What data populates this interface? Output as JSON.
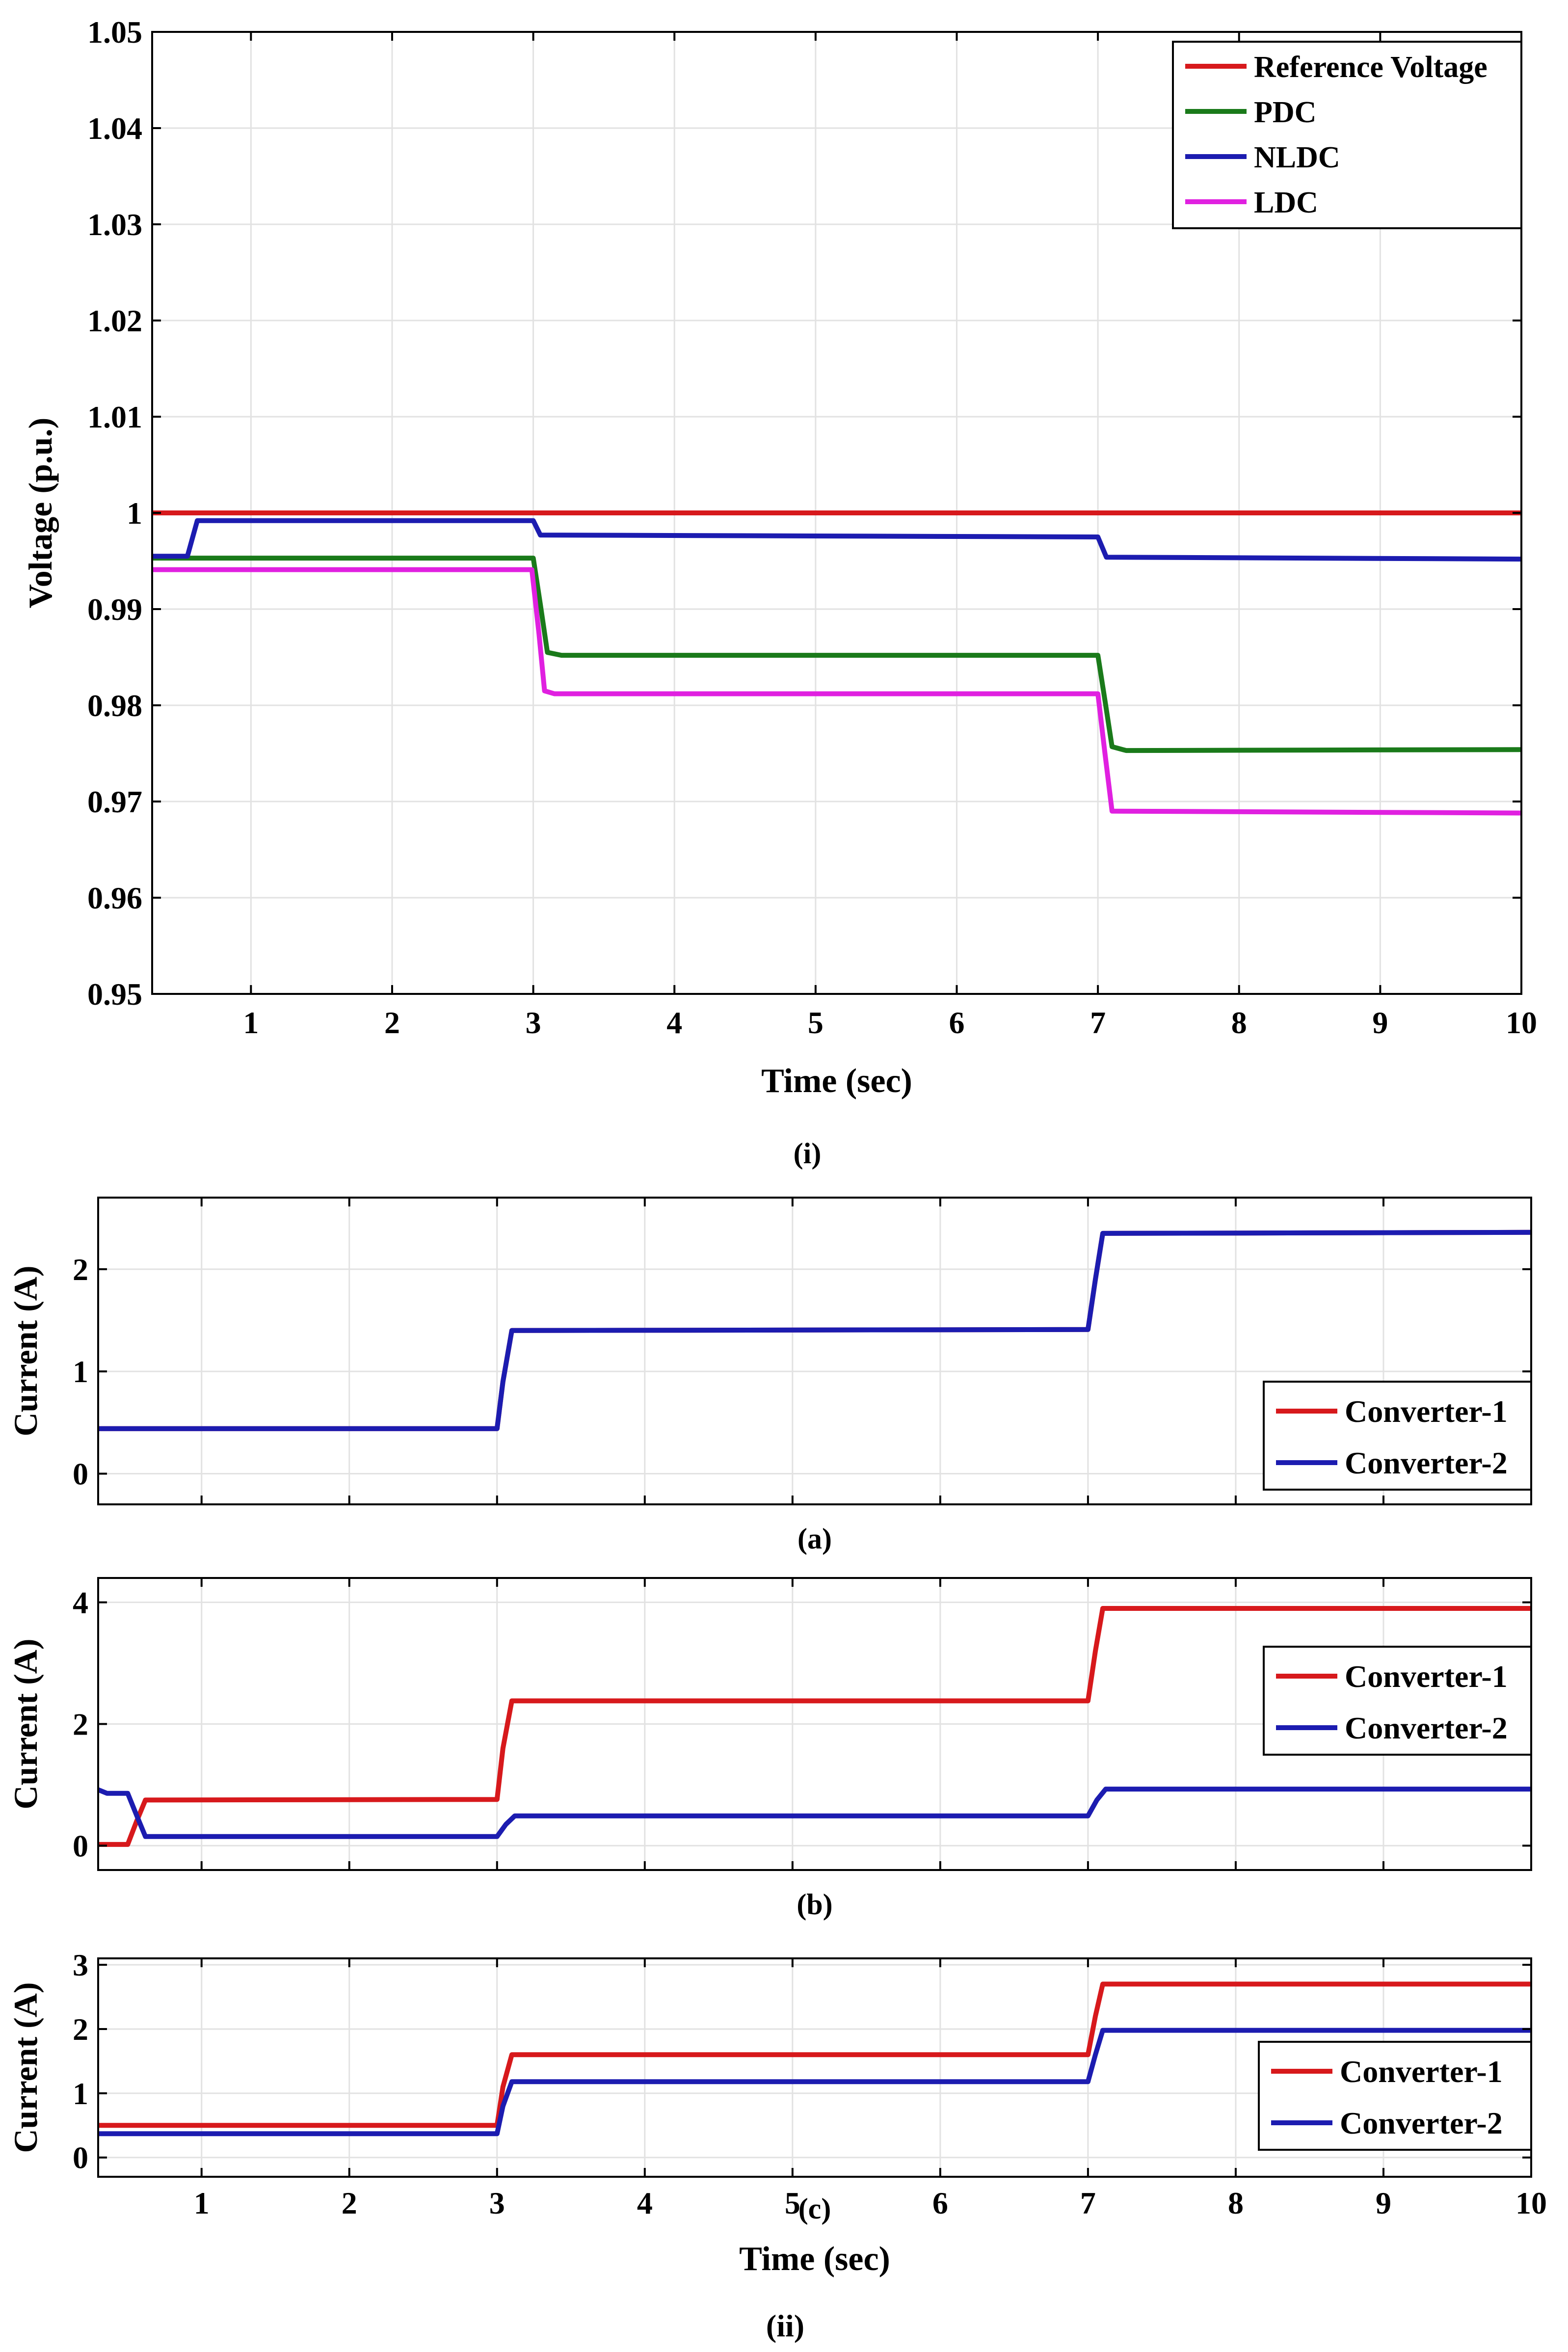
{
  "chart_data": [
    {
      "id": "voltage",
      "type": "line",
      "title": "",
      "caption": "(i)",
      "xlabel": "Time (sec)",
      "ylabel": "Voltage (p.u.)",
      "xlim": [
        0.3,
        10
      ],
      "ylim": [
        0.95,
        1.05
      ],
      "xticks": [
        1,
        2,
        3,
        4,
        5,
        6,
        7,
        8,
        9,
        10
      ],
      "yticks": [
        0.95,
        0.96,
        0.97,
        0.98,
        0.99,
        1,
        1.01,
        1.02,
        1.03,
        1.04,
        1.05
      ],
      "ytick_labels": [
        "0.95",
        "0.96",
        "0.97",
        "0.98",
        "0.99",
        "1",
        "1.01",
        "1.02",
        "1.03",
        "1.04",
        "1.05"
      ],
      "grid": true,
      "legend_position": "top-right",
      "series": [
        {
          "name": "Reference Voltage",
          "color": "#d7191c",
          "points": [
            [
              0.3,
              1.0
            ],
            [
              10,
              1.0
            ]
          ]
        },
        {
          "name": "PDC",
          "color": "#1a7a1a",
          "points": [
            [
              0.3,
              0.9953
            ],
            [
              3.0,
              0.9953
            ],
            [
              3.05,
              0.9905
            ],
            [
              3.1,
              0.9855
            ],
            [
              3.2,
              0.9852
            ],
            [
              7.0,
              0.9852
            ],
            [
              7.05,
              0.9805
            ],
            [
              7.1,
              0.9757
            ],
            [
              7.2,
              0.9753
            ],
            [
              10,
              0.9754
            ]
          ]
        },
        {
          "name": "NLDC",
          "color": "#1c1cb0",
          "points": [
            [
              0.3,
              0.9955
            ],
            [
              0.55,
              0.9955
            ],
            [
              0.62,
              0.9992
            ],
            [
              3.0,
              0.9992
            ],
            [
              3.05,
              0.9977
            ],
            [
              7.0,
              0.9975
            ],
            [
              7.06,
              0.9954
            ],
            [
              10,
              0.9952
            ]
          ]
        },
        {
          "name": "LDC",
          "color": "#e020e0",
          "points": [
            [
              0.3,
              0.9941
            ],
            [
              2.99,
              0.9941
            ],
            [
              3.04,
              0.9875
            ],
            [
              3.08,
              0.9815
            ],
            [
              3.15,
              0.9812
            ],
            [
              7.0,
              0.9812
            ],
            [
              7.05,
              0.975
            ],
            [
              7.1,
              0.969
            ],
            [
              10,
              0.9688
            ]
          ]
        }
      ]
    },
    {
      "id": "current-a",
      "type": "line",
      "title": "",
      "caption": "(a)",
      "xlabel": "",
      "ylabel": "Current (A)",
      "xlim": [
        0.3,
        10
      ],
      "ylim": [
        -0.3,
        2.7
      ],
      "xticks": [
        1,
        2,
        3,
        4,
        5,
        6,
        7,
        8,
        9,
        10
      ],
      "yticks": [
        0,
        1,
        2
      ],
      "ytick_labels": [
        "0",
        "1",
        "2"
      ],
      "grid": true,
      "legend_position": "bottom-right",
      "series": [
        {
          "name": "Converter-1",
          "color": "#d7191c",
          "points": [
            [
              0.3,
              0.44
            ],
            [
              3.0,
              0.44
            ],
            [
              3.04,
              0.9
            ],
            [
              3.1,
              1.4
            ],
            [
              7.0,
              1.41
            ],
            [
              7.05,
              1.9
            ],
            [
              7.1,
              2.35
            ],
            [
              10,
              2.36
            ]
          ]
        },
        {
          "name": "Converter-2",
          "color": "#1c1cb0",
          "points": [
            [
              0.3,
              0.44
            ],
            [
              3.0,
              0.44
            ],
            [
              3.04,
              0.9
            ],
            [
              3.1,
              1.4
            ],
            [
              7.0,
              1.41
            ],
            [
              7.05,
              1.9
            ],
            [
              7.1,
              2.35
            ],
            [
              10,
              2.36
            ]
          ]
        }
      ]
    },
    {
      "id": "current-b",
      "type": "line",
      "title": "",
      "caption": "(b)",
      "xlabel": "",
      "ylabel": "Current (A)",
      "xlim": [
        0.3,
        10
      ],
      "ylim": [
        -0.4,
        4.4
      ],
      "xticks": [
        1,
        2,
        3,
        4,
        5,
        6,
        7,
        8,
        9,
        10
      ],
      "yticks": [
        0,
        2,
        4
      ],
      "ytick_labels": [
        "0",
        "2",
        "4"
      ],
      "grid": true,
      "legend_position": "middle-right",
      "series": [
        {
          "name": "Converter-1",
          "color": "#d7191c",
          "points": [
            [
              0.3,
              0.02
            ],
            [
              0.5,
              0.02
            ],
            [
              0.56,
              0.4
            ],
            [
              0.62,
              0.75
            ],
            [
              3.0,
              0.76
            ],
            [
              3.04,
              1.6
            ],
            [
              3.1,
              2.38
            ],
            [
              7.0,
              2.38
            ],
            [
              7.05,
              3.2
            ],
            [
              7.1,
              3.9
            ],
            [
              10,
              3.9
            ]
          ]
        },
        {
          "name": "Converter-2",
          "color": "#1c1cb0",
          "points": [
            [
              0.3,
              0.92
            ],
            [
              0.36,
              0.86
            ],
            [
              0.5,
              0.86
            ],
            [
              0.56,
              0.5
            ],
            [
              0.62,
              0.15
            ],
            [
              3.0,
              0.15
            ],
            [
              3.06,
              0.35
            ],
            [
              3.12,
              0.49
            ],
            [
              7.0,
              0.49
            ],
            [
              7.06,
              0.75
            ],
            [
              7.12,
              0.93
            ],
            [
              10,
              0.93
            ]
          ]
        }
      ]
    },
    {
      "id": "current-c",
      "type": "line",
      "title": "",
      "caption": "(c)",
      "xlabel": "Time (sec)",
      "ylabel": "Current (A)",
      "xlim": [
        0.3,
        10
      ],
      "ylim": [
        -0.3,
        3.1
      ],
      "xticks": [
        1,
        2,
        3,
        4,
        5,
        6,
        7,
        8,
        9,
        10
      ],
      "yticks": [
        0,
        1,
        2,
        3
      ],
      "ytick_labels": [
        "0",
        "1",
        "2",
        "3"
      ],
      "grid": true,
      "legend_position": "bottom-right",
      "series": [
        {
          "name": "Converter-1",
          "color": "#d7191c",
          "points": [
            [
              0.3,
              0.5
            ],
            [
              3.0,
              0.5
            ],
            [
              3.04,
              1.1
            ],
            [
              3.1,
              1.6
            ],
            [
              7.0,
              1.6
            ],
            [
              7.05,
              2.2
            ],
            [
              7.1,
              2.7
            ],
            [
              10,
              2.7
            ]
          ]
        },
        {
          "name": "Converter-2",
          "color": "#1c1cb0",
          "points": [
            [
              0.3,
              0.37
            ],
            [
              3.0,
              0.37
            ],
            [
              3.04,
              0.8
            ],
            [
              3.1,
              1.18
            ],
            [
              7.0,
              1.18
            ],
            [
              7.05,
              1.6
            ],
            [
              7.1,
              1.98
            ],
            [
              10,
              1.98
            ]
          ]
        }
      ]
    }
  ],
  "figure_captions": {
    "panel_ii": "(ii)"
  }
}
